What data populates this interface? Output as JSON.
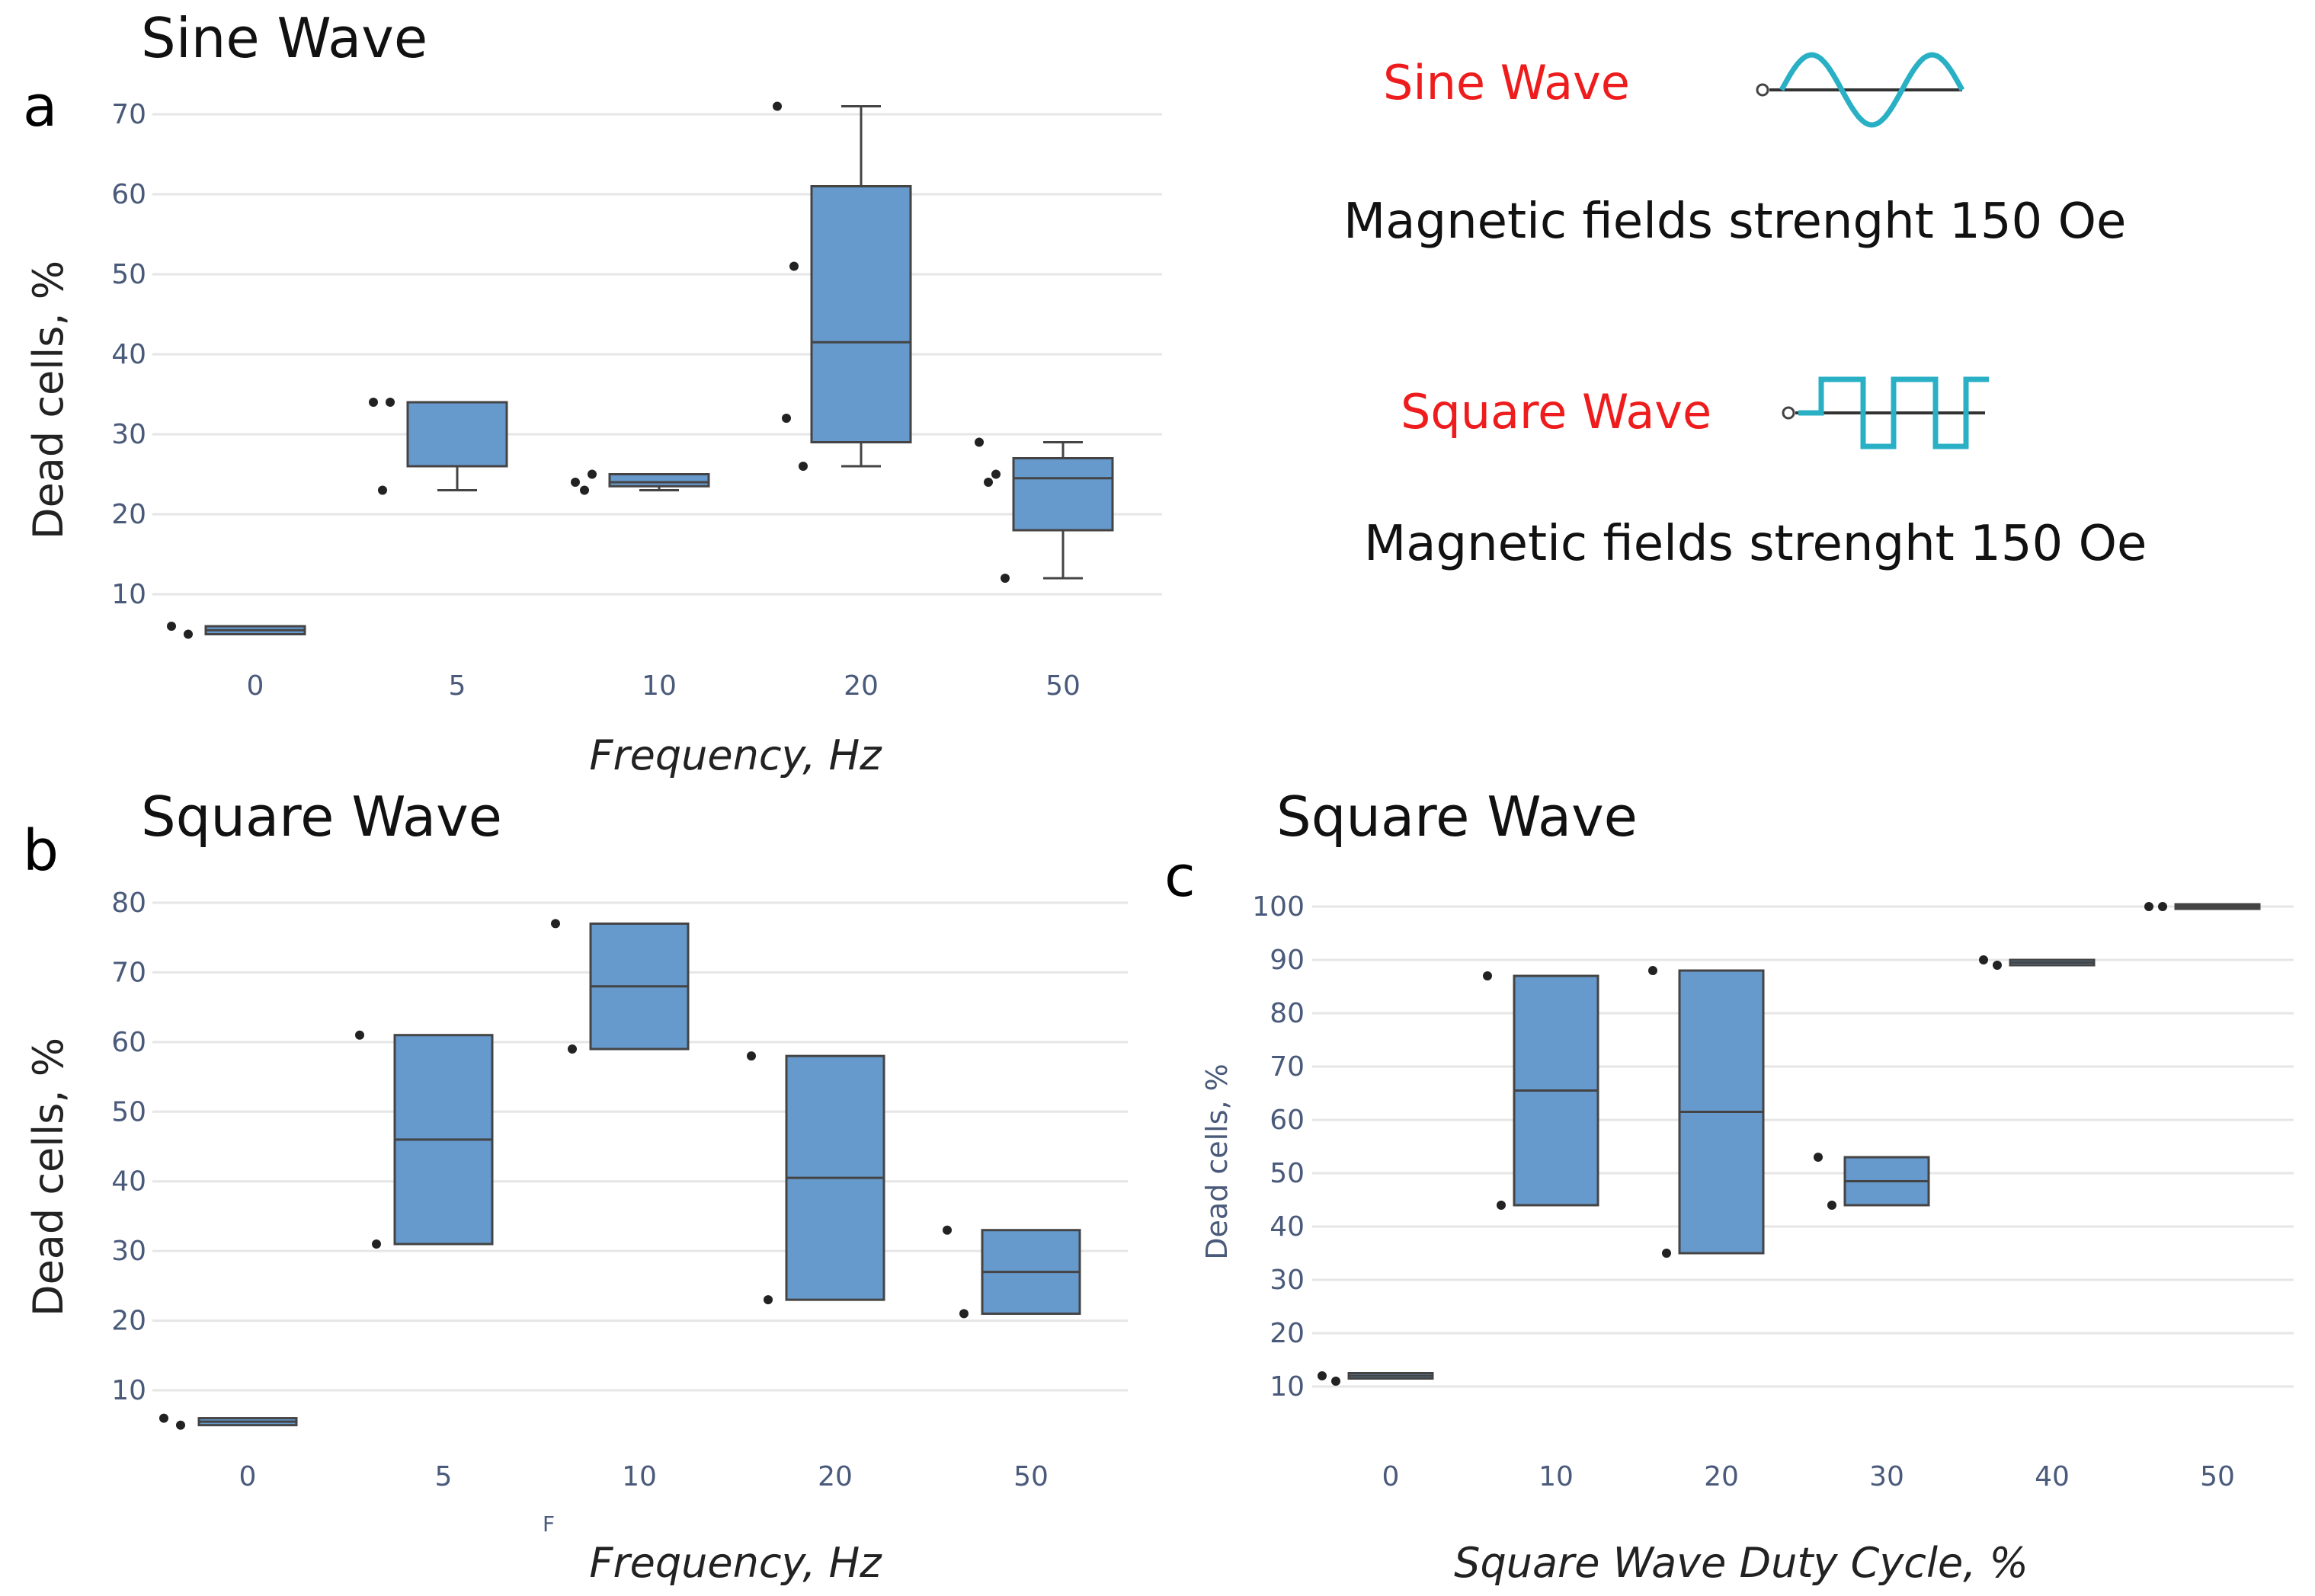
{
  "panel_labels": [
    "a",
    "b",
    "c"
  ],
  "legend": {
    "sine_label": "Sine Wave",
    "sine_desc": "Magnetic fields strenght 150 Oe",
    "square_label": "Square Wave",
    "square_desc": "Magnetic fields strenght 150 Oe",
    "wave_color": "#2ab0c5",
    "label_color": "#ee1c1c"
  },
  "stray_text": "F",
  "colors": {
    "box_fill": "#6699cc",
    "box_line": "#444444",
    "grid": "#e6e6e6",
    "dot": "#222222"
  },
  "chart_data": [
    {
      "type": "box",
      "title": "Sine Wave",
      "xlabel": "Frequency, Hz",
      "ylabel": "Dead cells, %",
      "categories": [
        "0",
        "5",
        "10",
        "20",
        "50"
      ],
      "yticks": [
        10,
        20,
        30,
        40,
        50,
        60,
        70
      ],
      "ylim": [
        2,
        73
      ],
      "boxes": [
        {
          "q1": 5.0,
          "median": 5.5,
          "q3": 6.0,
          "lower": 5.0,
          "upper": 6.0,
          "points": [
            6,
            5
          ]
        },
        {
          "q1": 26,
          "median": 34,
          "q3": 34,
          "lower": 23,
          "upper": 34,
          "points": [
            34,
            34,
            23
          ]
        },
        {
          "q1": 23.5,
          "median": 24,
          "q3": 25,
          "lower": 23,
          "upper": 25,
          "points": [
            24,
            25,
            23
          ]
        },
        {
          "q1": 29,
          "median": 41.5,
          "q3": 61,
          "lower": 26,
          "upper": 71,
          "points": [
            71,
            51,
            32,
            26
          ]
        },
        {
          "q1": 18,
          "median": 24.5,
          "q3": 27,
          "lower": 12,
          "upper": 29,
          "points": [
            29,
            25,
            24,
            12
          ]
        }
      ]
    },
    {
      "type": "box",
      "title": "Square Wave",
      "xlabel": "Frequency, Hz",
      "ylabel": "Dead cells, %",
      "categories": [
        "0",
        "5",
        "10",
        "20",
        "50"
      ],
      "yticks": [
        10,
        20,
        30,
        40,
        50,
        60,
        70,
        80
      ],
      "ylim": [
        2,
        81
      ],
      "boxes": [
        {
          "q1": 5.0,
          "median": 5.5,
          "q3": 6.0,
          "lower": 5.0,
          "upper": 6.0,
          "points": [
            6,
            5
          ]
        },
        {
          "q1": 31,
          "median": 46,
          "q3": 61,
          "lower": 31,
          "upper": 61,
          "points": [
            61,
            31
          ]
        },
        {
          "q1": 59,
          "median": 68,
          "q3": 77,
          "lower": 59,
          "upper": 77,
          "points": [
            77,
            59
          ]
        },
        {
          "q1": 23,
          "median": 40.5,
          "q3": 58,
          "lower": 23,
          "upper": 58,
          "points": [
            58,
            23
          ]
        },
        {
          "q1": 21,
          "median": 27,
          "q3": 33,
          "lower": 21,
          "upper": 33,
          "points": [
            33,
            21
          ]
        }
      ]
    },
    {
      "type": "box",
      "title": "Square Wave",
      "xlabel": "Square Wave Duty Cycle, %",
      "ylabel": "Dead cells, %",
      "categories": [
        "0",
        "10",
        "20",
        "30",
        "40",
        "50"
      ],
      "yticks": [
        10,
        20,
        30,
        40,
        50,
        60,
        70,
        80,
        90,
        100
      ],
      "ylim": [
        7,
        101
      ],
      "boxes": [
        {
          "q1": 11.5,
          "median": 12,
          "q3": 12.5,
          "lower": 11.5,
          "upper": 12.5,
          "points": [
            12,
            11
          ]
        },
        {
          "q1": 44,
          "median": 65.5,
          "q3": 87,
          "lower": 44,
          "upper": 87,
          "points": [
            87,
            44
          ]
        },
        {
          "q1": 35,
          "median": 61.5,
          "q3": 88,
          "lower": 35,
          "upper": 88,
          "points": [
            88,
            35
          ]
        },
        {
          "q1": 44,
          "median": 48.5,
          "q3": 53,
          "lower": 44,
          "upper": 53,
          "points": [
            53,
            44
          ]
        },
        {
          "q1": 89,
          "median": 89.5,
          "q3": 90,
          "lower": 89,
          "upper": 90,
          "points": [
            90,
            89
          ]
        },
        {
          "q1": 100,
          "median": 100,
          "q3": 100,
          "lower": 100,
          "upper": 100,
          "points": [
            100,
            100
          ]
        }
      ]
    }
  ]
}
